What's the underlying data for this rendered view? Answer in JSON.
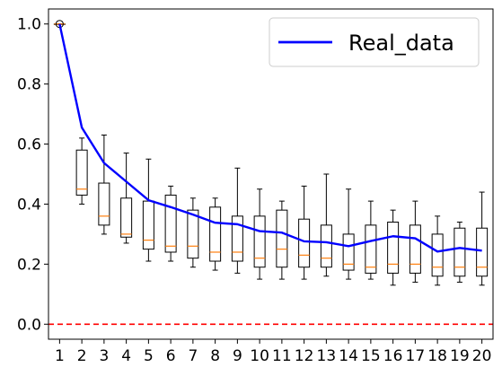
{
  "chart_data": {
    "type": "box",
    "categories": [
      "1",
      "2",
      "3",
      "4",
      "5",
      "6",
      "7",
      "8",
      "9",
      "10",
      "11",
      "12",
      "13",
      "14",
      "15",
      "16",
      "17",
      "18",
      "19",
      "20"
    ],
    "boxes": [
      {
        "whislo": 1.0,
        "q1": 1.0,
        "med": 1.0,
        "q3": 1.0,
        "whishi": 1.0,
        "fliers": [
          1.0
        ]
      },
      {
        "whislo": 0.4,
        "q1": 0.43,
        "med": 0.45,
        "q3": 0.58,
        "whishi": 0.62,
        "fliers": []
      },
      {
        "whislo": 0.3,
        "q1": 0.33,
        "med": 0.36,
        "q3": 0.47,
        "whishi": 0.63,
        "fliers": []
      },
      {
        "whislo": 0.27,
        "q1": 0.29,
        "med": 0.3,
        "q3": 0.42,
        "whishi": 0.57,
        "fliers": []
      },
      {
        "whislo": 0.21,
        "q1": 0.25,
        "med": 0.28,
        "q3": 0.41,
        "whishi": 0.55,
        "fliers": []
      },
      {
        "whislo": 0.21,
        "q1": 0.24,
        "med": 0.26,
        "q3": 0.43,
        "whishi": 0.46,
        "fliers": []
      },
      {
        "whislo": 0.19,
        "q1": 0.22,
        "med": 0.26,
        "q3": 0.38,
        "whishi": 0.42,
        "fliers": []
      },
      {
        "whislo": 0.18,
        "q1": 0.21,
        "med": 0.24,
        "q3": 0.39,
        "whishi": 0.42,
        "fliers": []
      },
      {
        "whislo": 0.17,
        "q1": 0.21,
        "med": 0.24,
        "q3": 0.36,
        "whishi": 0.52,
        "fliers": []
      },
      {
        "whislo": 0.15,
        "q1": 0.19,
        "med": 0.22,
        "q3": 0.36,
        "whishi": 0.45,
        "fliers": []
      },
      {
        "whislo": 0.15,
        "q1": 0.19,
        "med": 0.25,
        "q3": 0.38,
        "whishi": 0.41,
        "fliers": []
      },
      {
        "whislo": 0.15,
        "q1": 0.19,
        "med": 0.23,
        "q3": 0.35,
        "whishi": 0.46,
        "fliers": []
      },
      {
        "whislo": 0.16,
        "q1": 0.19,
        "med": 0.22,
        "q3": 0.33,
        "whishi": 0.5,
        "fliers": []
      },
      {
        "whislo": 0.15,
        "q1": 0.18,
        "med": 0.2,
        "q3": 0.3,
        "whishi": 0.45,
        "fliers": []
      },
      {
        "whislo": 0.15,
        "q1": 0.17,
        "med": 0.19,
        "q3": 0.33,
        "whishi": 0.41,
        "fliers": []
      },
      {
        "whislo": 0.13,
        "q1": 0.17,
        "med": 0.2,
        "q3": 0.34,
        "whishi": 0.38,
        "fliers": []
      },
      {
        "whislo": 0.14,
        "q1": 0.17,
        "med": 0.2,
        "q3": 0.33,
        "whishi": 0.41,
        "fliers": []
      },
      {
        "whislo": 0.13,
        "q1": 0.16,
        "med": 0.19,
        "q3": 0.3,
        "whishi": 0.36,
        "fliers": []
      },
      {
        "whislo": 0.14,
        "q1": 0.16,
        "med": 0.19,
        "q3": 0.32,
        "whishi": 0.34,
        "fliers": []
      },
      {
        "whislo": 0.13,
        "q1": 0.16,
        "med": 0.19,
        "q3": 0.32,
        "whishi": 0.44,
        "fliers": []
      }
    ],
    "series": [
      {
        "name": "Real_data",
        "type": "line",
        "color": "#0000ff",
        "values": [
          1.0,
          0.655,
          0.537,
          0.475,
          0.413,
          0.39,
          0.365,
          0.338,
          0.333,
          0.31,
          0.305,
          0.276,
          0.273,
          0.26,
          0.277,
          0.293,
          0.286,
          0.242,
          0.254,
          0.245
        ]
      }
    ],
    "reference_line": {
      "y": 0.0,
      "color": "#ff0000",
      "style": "dashed"
    },
    "median_color": "#ff7f0e",
    "ylim": [
      -0.05,
      1.05
    ],
    "yticks": [
      0.0,
      0.2,
      0.4,
      0.6,
      0.8,
      1.0
    ],
    "ytick_labels": [
      "0.0",
      "0.2",
      "0.4",
      "0.6",
      "0.8",
      "1.0"
    ],
    "xlabel": "",
    "ylabel": "",
    "title": "",
    "grid": false,
    "legend": {
      "position": "top-right",
      "entries": [
        "Real_data"
      ]
    }
  }
}
